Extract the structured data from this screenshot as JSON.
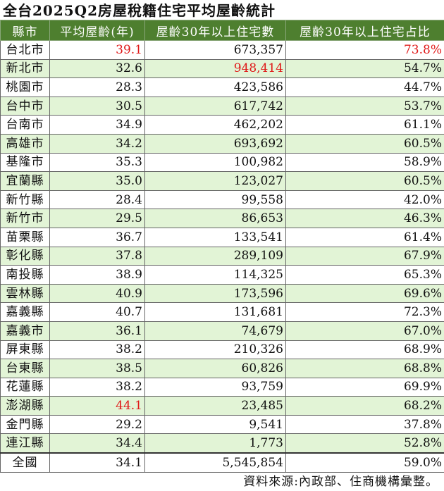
{
  "title": "全台2025Q2房屋稅籍住宅平均屋齡統計",
  "headers": [
    "縣市",
    "平均屋齡(年)",
    "屋齡30年以上住宅數",
    "屋齡30年以上住宅占比"
  ],
  "highlight_color": "#e01818",
  "header_color": "#4e7f2f",
  "alt_row_color": "#e2f4d6",
  "rows": [
    {
      "name": "台北市",
      "age": "39.1",
      "count": "673,357",
      "share": "73.8%",
      "hl": [
        "age",
        "share"
      ]
    },
    {
      "name": "新北市",
      "age": "32.6",
      "count": "948,414",
      "share": "54.7%",
      "hl": [
        "count"
      ]
    },
    {
      "name": "桃園市",
      "age": "28.3",
      "count": "423,586",
      "share": "44.7%"
    },
    {
      "name": "台中市",
      "age": "30.5",
      "count": "617,742",
      "share": "53.7%"
    },
    {
      "name": "台南市",
      "age": "34.9",
      "count": "462,202",
      "share": "61.1%"
    },
    {
      "name": "高雄市",
      "age": "34.2",
      "count": "693,692",
      "share": "60.5%"
    },
    {
      "name": "基隆市",
      "age": "35.3",
      "count": "100,982",
      "share": "58.9%"
    },
    {
      "name": "宜蘭縣",
      "age": "35.0",
      "count": "123,027",
      "share": "60.5%"
    },
    {
      "name": "新竹縣",
      "age": "28.4",
      "count": "99,558",
      "share": "42.0%"
    },
    {
      "name": "新竹市",
      "age": "29.5",
      "count": "86,653",
      "share": "46.3%"
    },
    {
      "name": "苗栗縣",
      "age": "36.7",
      "count": "133,541",
      "share": "61.4%"
    },
    {
      "name": "彰化縣",
      "age": "37.8",
      "count": "289,109",
      "share": "67.9%"
    },
    {
      "name": "南投縣",
      "age": "38.9",
      "count": "114,325",
      "share": "65.3%"
    },
    {
      "name": "雲林縣",
      "age": "40.9",
      "count": "173,596",
      "share": "69.6%"
    },
    {
      "name": "嘉義縣",
      "age": "40.7",
      "count": "131,681",
      "share": "72.3%"
    },
    {
      "name": "嘉義市",
      "age": "36.1",
      "count": "74,679",
      "share": "67.0%"
    },
    {
      "name": "屏東縣",
      "age": "38.2",
      "count": "210,326",
      "share": "68.9%"
    },
    {
      "name": "台東縣",
      "age": "38.5",
      "count": "60,826",
      "share": "68.8%"
    },
    {
      "name": "花蓮縣",
      "age": "38.2",
      "count": "93,759",
      "share": "69.9%"
    },
    {
      "name": "澎湖縣",
      "age": "44.1",
      "count": "23,485",
      "share": "68.2%",
      "hl": [
        "age"
      ]
    },
    {
      "name": "金門縣",
      "age": "29.2",
      "count": "9,541",
      "share": "37.8%"
    },
    {
      "name": "連江縣",
      "age": "34.4",
      "count": "1,773",
      "share": "52.8%"
    }
  ],
  "total": {
    "name": "全國",
    "age": "34.1",
    "count": "5,545,854",
    "share": "59.0%"
  },
  "source": "資料來源:內政部、住商機構彙整。"
}
